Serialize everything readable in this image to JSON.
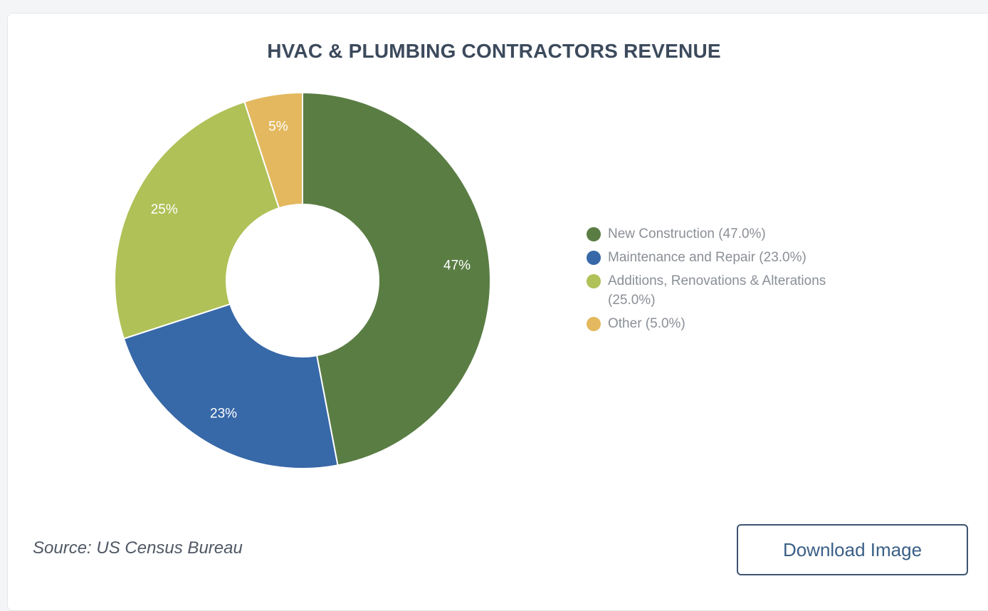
{
  "chart_data": {
    "type": "pie",
    "title": "HVAC & PLUMBING CONTRACTORS REVENUE",
    "categories": [
      "New Construction",
      "Maintenance and Repair",
      "Additions, Renovations & Alterations",
      "Other"
    ],
    "values": [
      47.0,
      23.0,
      25.0,
      5.0
    ],
    "slice_labels": [
      "47%",
      "23%",
      "25%",
      "5%"
    ],
    "colors": [
      "#5a7d44",
      "#3768a8",
      "#afc157",
      "#e3b85e"
    ],
    "donut": true,
    "legend_position": "right",
    "legend": [
      {
        "label": "New Construction (47.0%)",
        "color": "#5a7d44"
      },
      {
        "label": "Maintenance and Repair (23.0%)",
        "color": "#3768a8"
      },
      {
        "label": "Additions, Renovations & Alterations (25.0%)",
        "color": "#afc157"
      },
      {
        "label": "Other (5.0%)",
        "color": "#e3b85e"
      }
    ]
  },
  "footer": {
    "source": "Source: US Census Bureau",
    "download_label": "Download Image"
  }
}
